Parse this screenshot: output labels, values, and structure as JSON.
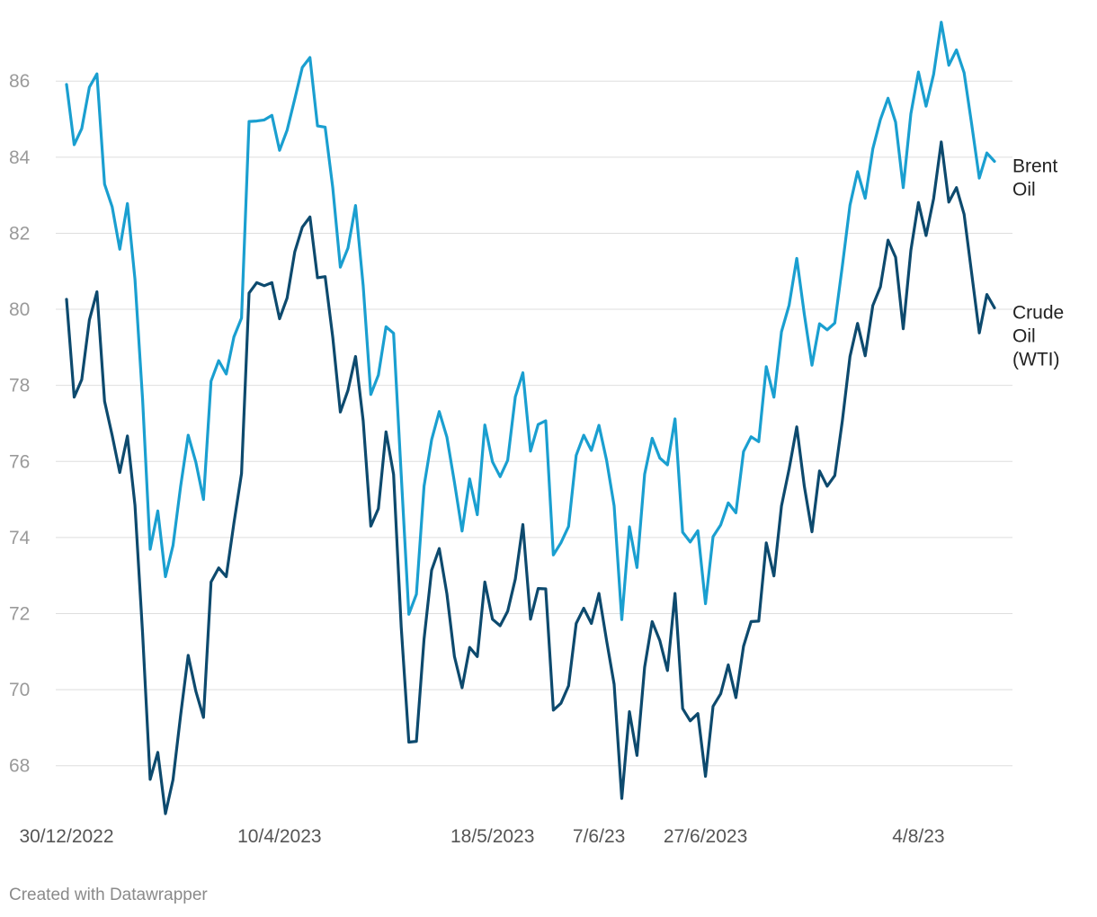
{
  "footer": "Created with Datawrapper",
  "chart_data": {
    "type": "line",
    "title": "",
    "xlabel": "",
    "ylabel": "",
    "ylim": [
      67,
      87.4
    ],
    "yticks": [
      68,
      70,
      72,
      74,
      76,
      78,
      80,
      82,
      84,
      86
    ],
    "grid": true,
    "legend": "direct labels at right end of lines",
    "x_tick_labels": [
      {
        "label": "30/12/2022",
        "index": 0
      },
      {
        "label": "10/4/2023",
        "index": 28
      },
      {
        "label": "18/5/2023",
        "index": 56
      },
      {
        "label": "7/6/23",
        "index": 70
      },
      {
        "label": "27/6/2023",
        "index": 84
      },
      {
        "label": "4/8/23",
        "index": 112
      }
    ],
    "series": [
      {
        "name": "Brent Oil",
        "label_lines": [
          "Brent",
          "Oil"
        ],
        "color": "#1a9fd0",
        "values": [
          85.91,
          84.33,
          84.75,
          85.84,
          86.19,
          83.29,
          82.69,
          81.58,
          82.78,
          80.79,
          77.62,
          73.69,
          74.7,
          72.97,
          73.79,
          75.35,
          76.69,
          75.98,
          75.0,
          78.11,
          78.65,
          78.3,
          79.27,
          79.77,
          84.94,
          84.95,
          84.98,
          85.1,
          84.18,
          84.71,
          85.53,
          86.36,
          86.62,
          84.82,
          84.79,
          83.19,
          81.11,
          81.61,
          82.73,
          80.62,
          77.76,
          78.27,
          79.54,
          79.37,
          75.65,
          71.98,
          72.51,
          75.35,
          76.57,
          77.31,
          76.64,
          75.45,
          74.17,
          75.54,
          74.6,
          76.96,
          75.99,
          75.6,
          76.03,
          77.7,
          78.33,
          76.27,
          76.97,
          77.07,
          73.54,
          73.86,
          74.29,
          76.16,
          76.69,
          76.29,
          76.95,
          76.03,
          74.83,
          71.84,
          74.28,
          73.21,
          75.66,
          76.61,
          76.09,
          75.91,
          77.12,
          74.14,
          73.88,
          74.18,
          72.26,
          74.02,
          74.33,
          74.91,
          74.65,
          76.26,
          76.65,
          76.52,
          78.49,
          77.69,
          79.41,
          80.11,
          81.34,
          79.87,
          78.53,
          79.62,
          79.46,
          79.64,
          81.14,
          82.74,
          83.62,
          82.92,
          84.22,
          84.99,
          85.55,
          84.92,
          83.2,
          85.14,
          86.24,
          85.34,
          86.18,
          87.55,
          86.42,
          86.82,
          86.22,
          84.87,
          83.45,
          84.11,
          83.89
        ]
      },
      {
        "name": "Crude Oil (WTI)",
        "label_lines": [
          "Crude",
          "Oil",
          "(WTI)"
        ],
        "color": "#0d4a6e",
        "values": [
          80.26,
          77.69,
          78.15,
          79.72,
          80.46,
          77.58,
          76.68,
          75.71,
          76.67,
          74.85,
          71.47,
          67.64,
          68.35,
          66.74,
          67.63,
          69.33,
          70.9,
          69.96,
          69.27,
          72.83,
          73.2,
          72.97,
          74.37,
          75.68,
          80.43,
          80.7,
          80.62,
          80.7,
          79.75,
          80.3,
          81.51,
          82.16,
          82.43,
          80.83,
          80.86,
          79.26,
          77.3,
          77.87,
          78.76,
          77.07,
          74.3,
          74.76,
          76.78,
          75.66,
          71.65,
          68.62,
          68.64,
          71.33,
          73.14,
          73.71,
          72.52,
          70.87,
          70.05,
          71.11,
          70.87,
          72.83,
          71.85,
          71.68,
          72.06,
          72.91,
          74.34,
          71.85,
          72.66,
          72.65,
          69.46,
          69.64,
          70.1,
          71.74,
          72.14,
          71.74,
          72.53,
          71.29,
          70.14,
          67.14,
          69.42,
          68.27,
          70.59,
          71.79,
          71.29,
          70.5,
          72.53,
          69.5,
          69.18,
          69.37,
          67.72,
          69.56,
          69.89,
          70.65,
          69.79,
          71.14,
          71.79,
          71.8,
          73.86,
          72.99,
          74.83,
          75.8,
          76.91,
          75.35,
          74.15,
          75.75,
          75.35,
          75.63,
          77.07,
          78.76,
          79.63,
          78.78,
          80.1,
          80.59,
          81.82,
          81.37,
          79.49,
          81.55,
          82.81,
          81.94,
          82.91,
          84.4,
          82.82,
          83.2,
          82.5,
          80.95,
          79.38,
          80.39,
          80.04
        ]
      }
    ]
  }
}
